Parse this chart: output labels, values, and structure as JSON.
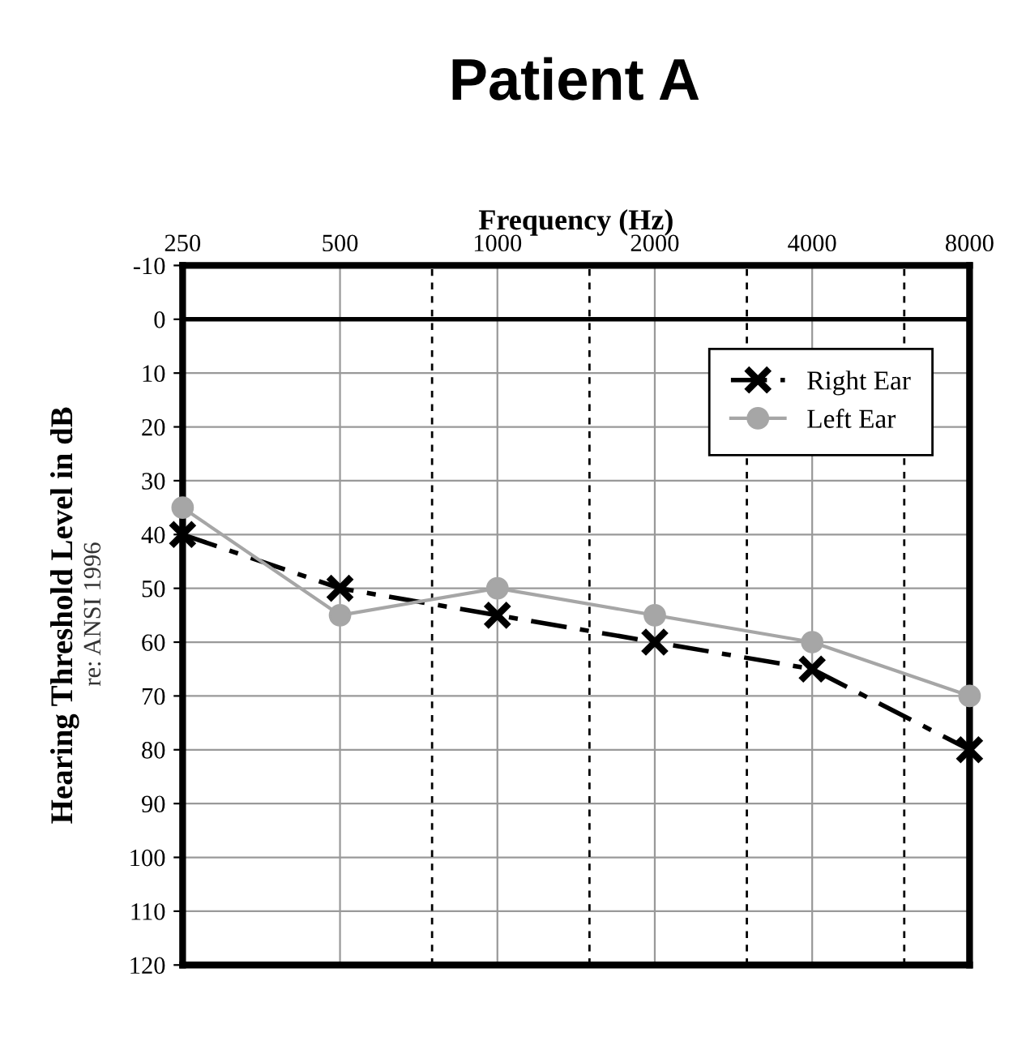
{
  "chart_data": {
    "type": "line",
    "title": "Patient A",
    "xlabel": "Frequency (Hz)",
    "ylabel": "Hearing Threshold Level in dB",
    "annotations": [
      "re: ANSI 1996"
    ],
    "x": [
      250,
      500,
      1000,
      2000,
      4000,
      8000
    ],
    "log": "x",
    "xlim": [
      250,
      8000
    ],
    "xticks": [
      250,
      500,
      1000,
      2000,
      4000,
      8000
    ],
    "ylim": [
      120,
      -10
    ],
    "yticks": [
      -10,
      0,
      10,
      20,
      30,
      40,
      50,
      60,
      70,
      80,
      90,
      100,
      110,
      120
    ],
    "grid": true,
    "legend": "top right",
    "ref_lines": [
      {
        "axis": "y",
        "value": 0,
        "color": "#000000",
        "line_style": "solid"
      },
      {
        "axis": "x",
        "value": 750,
        "color": "#000000",
        "line_style": "dashed"
      },
      {
        "axis": "x",
        "value": 1500,
        "color": "#000000",
        "line_style": "dashed"
      },
      {
        "axis": "x",
        "value": 3000,
        "color": "#000000",
        "line_style": "dashed"
      },
      {
        "axis": "x",
        "value": 6000,
        "color": "#000000",
        "line_style": "dashed"
      }
    ],
    "series": [
      {
        "name": "Right Ear",
        "color": "#000000",
        "marker": "cross",
        "line_style": "dashdot",
        "values": [
          40,
          50,
          55,
          60,
          65,
          80
        ]
      },
      {
        "name": "Left Ear",
        "color": "#a6a6a6",
        "marker": "circle",
        "line_style": "solid",
        "values": [
          35,
          55,
          50,
          55,
          60,
          70
        ]
      }
    ]
  }
}
